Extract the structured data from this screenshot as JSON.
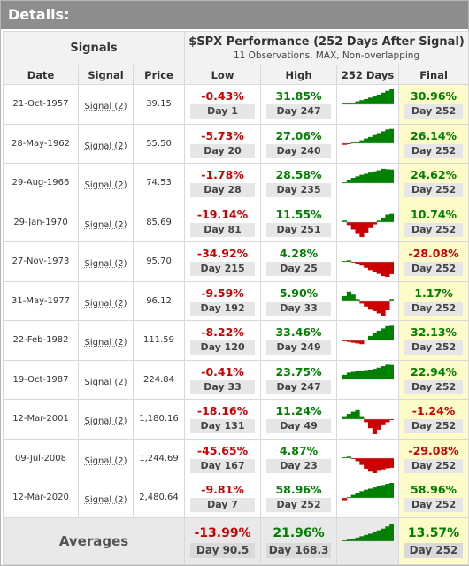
{
  "details_title": "Details:",
  "headers": {
    "signals_group": "Signals",
    "performance_title": "$SPX Performance (252 Days After Signal)",
    "performance_subtitle": "11 Observations, MAX, Non-overlapping",
    "columns": [
      "Date",
      "Signal",
      "Price",
      "Low",
      "High",
      "252 Days",
      "Final"
    ]
  },
  "colors": {
    "positive": "#008000",
    "negative": "#cc0000",
    "final_bg": "#fdfbc8"
  },
  "rows": [
    {
      "date": "21-Oct-1957",
      "signal": "Signal (2)",
      "price": "39.15",
      "low_pct": "-0.43%",
      "low_day": "Day 1",
      "high_pct": "31.85%",
      "high_day": "Day 247",
      "final_pct": "30.96%",
      "final_day": "Day 252",
      "spark_shape": [
        0.02,
        0.05,
        0.12,
        0.2,
        0.28,
        0.36,
        0.45,
        0.55,
        0.65,
        0.78,
        0.9,
        1.0
      ]
    },
    {
      "date": "28-May-1962",
      "signal": "Signal (2)",
      "price": "55.50",
      "low_pct": "-5.73%",
      "low_day": "Day 20",
      "high_pct": "27.06%",
      "high_day": "Day 240",
      "final_pct": "26.14%",
      "final_day": "Day 252",
      "spark_shape": [
        -0.1,
        -0.05,
        0.05,
        0.12,
        0.2,
        0.32,
        0.42,
        0.55,
        0.68,
        0.8,
        0.92,
        0.96
      ]
    },
    {
      "date": "29-Aug-1966",
      "signal": "Signal (2)",
      "price": "74.53",
      "low_pct": "-1.78%",
      "low_day": "Day 28",
      "high_pct": "28.58%",
      "high_day": "Day 235",
      "final_pct": "24.62%",
      "final_day": "Day 252",
      "spark_shape": [
        0.05,
        0.2,
        0.35,
        0.45,
        0.55,
        0.62,
        0.7,
        0.78,
        0.85,
        0.95,
        0.92,
        0.9
      ]
    },
    {
      "date": "29-Jan-1970",
      "signal": "Signal (2)",
      "price": "85.69",
      "low_pct": "-19.14%",
      "low_day": "Day 81",
      "high_pct": "11.55%",
      "high_day": "Day 251",
      "final_pct": "10.74%",
      "final_day": "Day 252",
      "spark_shape": [
        0.1,
        -0.2,
        -0.5,
        -0.8,
        -1.0,
        -0.7,
        -0.4,
        -0.15,
        0.1,
        0.3,
        0.5,
        0.55
      ]
    },
    {
      "date": "27-Nov-1973",
      "signal": "Signal (2)",
      "price": "95.70",
      "low_pct": "-34.92%",
      "low_day": "Day 215",
      "high_pct": "4.28%",
      "high_day": "Day 25",
      "final_pct": "-28.08%",
      "final_day": "Day 252",
      "spark_shape": [
        0.05,
        0.1,
        -0.05,
        -0.15,
        -0.25,
        -0.4,
        -0.55,
        -0.65,
        -0.8,
        -0.95,
        -1.0,
        -0.82
      ]
    },
    {
      "date": "31-May-1977",
      "signal": "Signal (2)",
      "price": "96.12",
      "low_pct": "-9.59%",
      "low_day": "Day 192",
      "high_pct": "5.90%",
      "high_day": "Day 33",
      "final_pct": "1.17%",
      "final_day": "Day 252",
      "spark_shape": [
        0.3,
        0.6,
        0.4,
        0.1,
        -0.2,
        -0.4,
        -0.55,
        -0.7,
        -0.85,
        -1.0,
        -0.6,
        0.1
      ]
    },
    {
      "date": "22-Feb-1982",
      "signal": "Signal (2)",
      "price": "111.59",
      "low_pct": "-8.22%",
      "low_day": "Day 120",
      "high_pct": "33.46%",
      "high_day": "Day 249",
      "final_pct": "32.13%",
      "final_day": "Day 252",
      "spark_shape": [
        -0.05,
        -0.1,
        -0.15,
        -0.2,
        -0.25,
        0.05,
        0.3,
        0.5,
        0.65,
        0.8,
        0.95,
        0.98
      ]
    },
    {
      "date": "19-Oct-1987",
      "signal": "Signal (2)",
      "price": "224.84",
      "low_pct": "-0.41%",
      "low_day": "Day 33",
      "high_pct": "23.75%",
      "high_day": "Day 247",
      "final_pct": "22.94%",
      "final_day": "Day 252",
      "spark_shape": [
        0.3,
        0.45,
        0.5,
        0.55,
        0.58,
        0.62,
        0.65,
        0.7,
        0.78,
        0.88,
        0.98,
        0.96
      ]
    },
    {
      "date": "12-Mar-2001",
      "signal": "Signal (2)",
      "price": "1,180.16",
      "low_pct": "-18.16%",
      "low_day": "Day 131",
      "high_pct": "11.24%",
      "high_day": "Day 49",
      "final_pct": "-1.24%",
      "final_day": "Day 252",
      "spark_shape": [
        0.2,
        0.35,
        0.5,
        0.6,
        0.2,
        -0.2,
        -0.6,
        -1.0,
        -0.7,
        -0.4,
        -0.2,
        -0.05
      ]
    },
    {
      "date": "09-Jul-2008",
      "signal": "Signal (2)",
      "price": "1,244.69",
      "low_pct": "-45.65%",
      "low_day": "Day 167",
      "high_pct": "4.87%",
      "high_day": "Day 23",
      "final_pct": "-29.08%",
      "final_day": "Day 252",
      "spark_shape": [
        0.05,
        0.1,
        -0.05,
        -0.2,
        -0.45,
        -0.7,
        -0.9,
        -1.0,
        -0.85,
        -0.75,
        -0.68,
        -0.64
      ]
    },
    {
      "date": "12-Mar-2020",
      "signal": "Signal (2)",
      "price": "2,480.64",
      "low_pct": "-9.81%",
      "low_day": "Day 7",
      "high_pct": "58.96%",
      "high_day": "Day 252",
      "final_pct": "58.96%",
      "final_day": "Day 252",
      "spark_shape": [
        -0.15,
        0.05,
        0.2,
        0.35,
        0.45,
        0.55,
        0.62,
        0.7,
        0.78,
        0.86,
        0.94,
        1.0
      ]
    }
  ],
  "averages": {
    "label": "Averages",
    "low_pct": "-13.99%",
    "low_day": "Day 90.5",
    "high_pct": "21.96%",
    "high_day": "Day 168.3",
    "final_pct": "13.57%",
    "final_day": "Day 252",
    "spark_shape": [
      0.05,
      0.1,
      0.15,
      0.22,
      0.3,
      0.38,
      0.45,
      0.55,
      0.65,
      0.75,
      0.88,
      1.0
    ]
  }
}
